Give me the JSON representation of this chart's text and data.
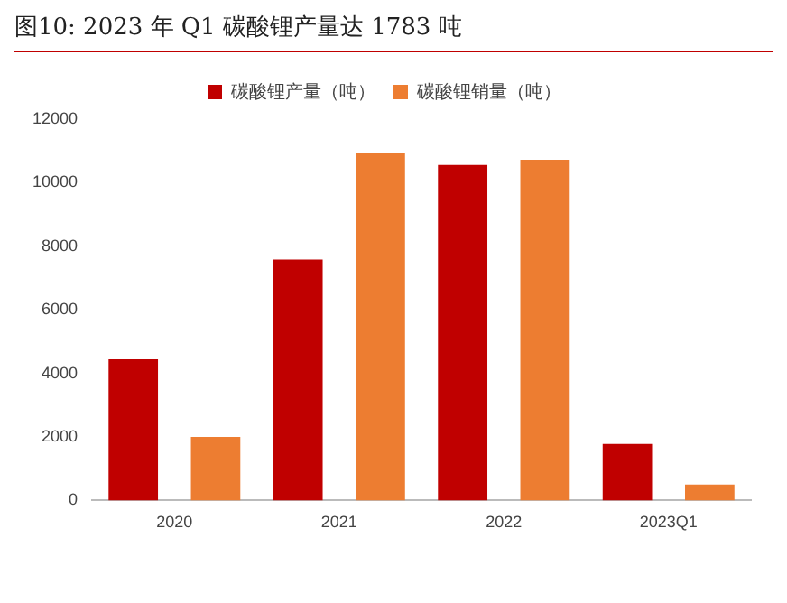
{
  "chart_data": {
    "type": "bar",
    "title": "图10:   2023 年 Q1 碳酸锂产量达 1783 吨",
    "categories": [
      "2020",
      "2021",
      "2022",
      "2023Q1"
    ],
    "series": [
      {
        "name": "碳酸锂产量（吨）",
        "color": "#c00000",
        "values": [
          4440,
          7580,
          10560,
          1783
        ]
      },
      {
        "name": "碳酸锂销量（吨）",
        "color": "#ed7d31",
        "values": [
          2000,
          10950,
          10720,
          500
        ]
      }
    ],
    "ylim": [
      0,
      12000
    ],
    "yticks": [
      0,
      2000,
      4000,
      6000,
      8000,
      10000,
      12000
    ],
    "grid": false,
    "legend": "top"
  }
}
